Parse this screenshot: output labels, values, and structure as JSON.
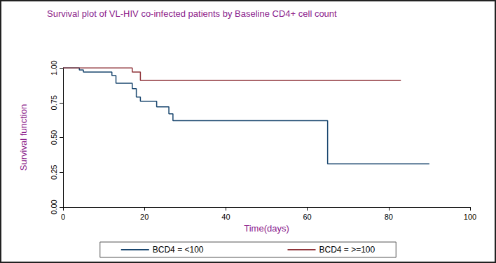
{
  "chart_data": {
    "type": "step",
    "title": "Survival plot of VL-HIV co-infected patients by Baseline CD4+ cell count",
    "x_label": "Time(days)",
    "y_label": "Survival function",
    "xlim": [
      0,
      100
    ],
    "xticks": [
      0,
      20,
      40,
      60,
      80,
      100
    ],
    "ylim": [
      0,
      1
    ],
    "yticks": [
      {
        "value": 0,
        "label": "0.00"
      },
      {
        "value": 0.25,
        "label": "0.25"
      },
      {
        "value": 0.5,
        "label": "0.50"
      },
      {
        "value": 0.75,
        "label": "0.75"
      },
      {
        "value": 1,
        "label": "1.00"
      }
    ],
    "grid": false,
    "legend": "bottom",
    "series": [
      {
        "name": "BCD4 = <100",
        "color": "#1a476f",
        "x": [
          0,
          4,
          5,
          12,
          13,
          17,
          18,
          19,
          23,
          26,
          27,
          65,
          90
        ],
        "values": [
          1,
          0.985,
          0.97,
          0.945,
          0.89,
          0.85,
          0.79,
          0.76,
          0.72,
          0.67,
          0.62,
          0.31,
          0.31
        ]
      },
      {
        "name": "BCD4 = >=100",
        "color": "#90353b",
        "x": [
          0,
          17,
          19,
          83
        ],
        "values": [
          1,
          0.97,
          0.91,
          0.91
        ]
      }
    ]
  }
}
